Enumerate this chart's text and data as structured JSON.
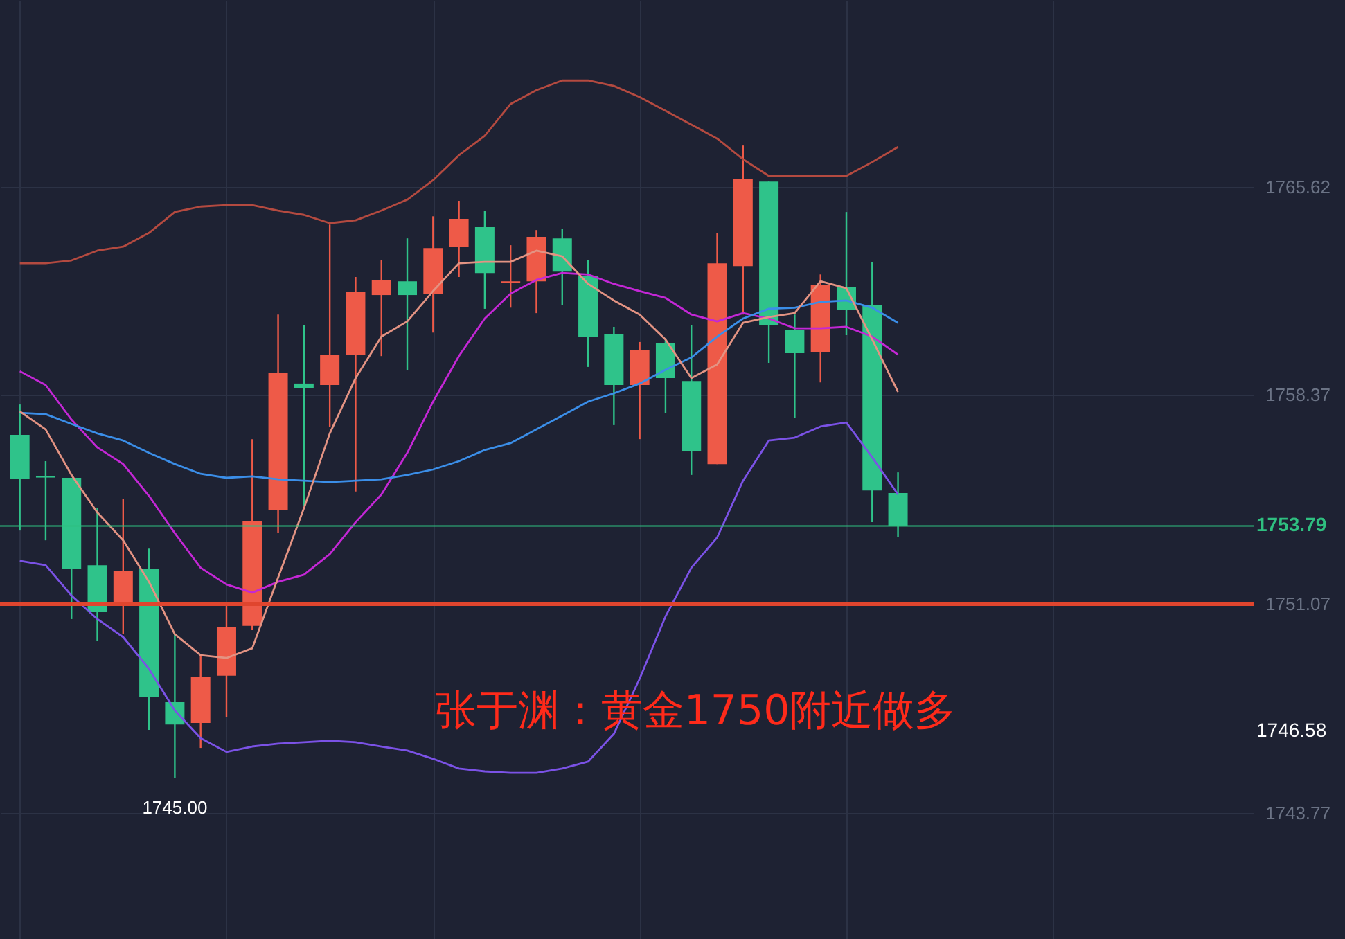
{
  "chart_data": {
    "type": "candlestick",
    "categories": [
      null,
      null,
      null,
      null,
      null,
      null,
      null,
      null,
      null,
      null,
      null,
      null,
      null,
      null,
      null,
      null,
      null,
      null,
      null,
      null,
      null,
      null,
      null,
      null,
      null,
      null,
      null,
      null,
      null,
      null,
      null,
      null,
      null,
      null,
      null,
      null,
      null,
      null,
      null,
      null,
      null,
      null,
      null,
      null,
      null,
      null,
      null,
      null
    ],
    "ohlc": [
      [
        1756.97,
        1758.03,
        1753.63,
        1755.42
      ],
      [
        1755.52,
        1756.05,
        1753.29,
        1755.48
      ],
      [
        1755.47,
        1755.47,
        1750.54,
        1752.28
      ],
      [
        1752.42,
        1754.41,
        1749.77,
        1750.78
      ],
      [
        1751.12,
        1754.74,
        1750.01,
        1752.23
      ],
      [
        1752.28,
        1753.0,
        1746.67,
        1747.83
      ],
      [
        1747.64,
        1750.01,
        1745.0,
        1746.86
      ],
      [
        1746.91,
        1749.28,
        1746.04,
        1748.51
      ],
      [
        1748.56,
        1751.02,
        1747.11,
        1750.25
      ],
      [
        1750.3,
        1756.82,
        1750.15,
        1753.97
      ],
      [
        1754.36,
        1761.17,
        1753.54,
        1759.14
      ],
      [
        1758.76,
        1760.79,
        1754.5,
        1758.61
      ],
      [
        1758.71,
        1764.31,
        1757.26,
        1759.77
      ],
      [
        1759.77,
        1762.48,
        1754.99,
        1761.95
      ],
      [
        1761.85,
        1763.06,
        1759.72,
        1762.38
      ],
      [
        1762.33,
        1763.83,
        1759.24,
        1761.85
      ],
      [
        1761.9,
        1764.6,
        1760.54,
        1763.49
      ],
      [
        1763.54,
        1765.14,
        1762.48,
        1764.51
      ],
      [
        1764.22,
        1764.8,
        1761.37,
        1762.62
      ],
      [
        1762.28,
        1763.59,
        1761.41,
        1762.33
      ],
      [
        1762.33,
        1764.12,
        1761.22,
        1763.88
      ],
      [
        1763.83,
        1764.17,
        1761.51,
        1762.67
      ],
      [
        1762.53,
        1763.06,
        1759.34,
        1760.4
      ],
      [
        1760.5,
        1760.74,
        1757.31,
        1758.71
      ],
      [
        1758.71,
        1760.21,
        1756.82,
        1759.92
      ],
      [
        1760.16,
        1760.35,
        1757.74,
        1758.95
      ],
      [
        1758.85,
        1760.79,
        1755.57,
        1756.39
      ],
      [
        1755.95,
        1764.02,
        1755.95,
        1762.96
      ],
      [
        1762.86,
        1767.07,
        1761.17,
        1765.91
      ],
      [
        1765.81,
        1765.81,
        1759.48,
        1760.79
      ],
      [
        1760.64,
        1761.17,
        1757.55,
        1759.82
      ],
      [
        1759.87,
        1762.57,
        1758.8,
        1762.19
      ],
      [
        1762.14,
        1764.75,
        1760.45,
        1761.32
      ],
      [
        1761.51,
        1763.01,
        1753.92,
        1755.03
      ],
      [
        1754.94,
        1755.66,
        1753.39,
        1753.79
      ],
      null,
      null,
      null,
      null,
      null,
      null,
      null,
      null,
      null,
      null,
      null,
      null,
      null
    ],
    "colors": [
      "#2fc38a",
      "#2fc38a",
      "#2fc38a",
      "#2fc38a",
      "#ee5a48",
      "#2fc38a",
      "#2fc38a",
      "#ee5a48",
      "#ee5a48",
      "#ee5a48",
      "#ee5a48",
      "#2fc38a",
      "#ee5a48",
      "#ee5a48",
      "#ee5a48",
      "#2fc38a",
      "#ee5a48",
      "#ee5a48",
      "#2fc38a",
      "#ee5a48",
      "#ee5a48",
      "#2fc38a",
      "#2fc38a",
      "#2fc38a",
      "#ee5a48",
      "#2fc38a",
      "#2fc38a",
      "#ee5a48",
      "#ee5a48",
      "#2fc38a",
      "#2fc38a",
      "#ee5a48",
      "#2fc38a",
      "#2fc38a",
      "#2fc38a",
      null,
      null,
      null,
      null,
      null,
      null,
      null,
      null,
      null,
      null,
      null,
      null,
      null
    ],
    "series": [
      {
        "type": "line",
        "color": "#b44a40",
        "values": [
          1762.96,
          1762.96,
          1763.06,
          1763.4,
          1763.54,
          1764.02,
          1764.75,
          1764.94,
          1764.99,
          1764.99,
          1764.8,
          1764.65,
          1764.36,
          1764.46,
          1764.8,
          1765.18,
          1765.86,
          1766.73,
          1767.41,
          1768.52,
          1769.0,
          1769.34,
          1769.34,
          1769.15,
          1768.76,
          1768.28,
          1767.8,
          1767.31,
          1766.59,
          1766.01,
          1766.01,
          1766.01,
          1766.01,
          1766.49,
          1767.02,
          null,
          null,
          null,
          null,
          null,
          null,
          null,
          null,
          null,
          null,
          null,
          null,
          null
        ]
      },
      {
        "type": "line",
        "color": "#7b52e6",
        "values": [
          1752.57,
          1752.42,
          1751.36,
          1750.54,
          1749.91,
          1748.8,
          1747.35,
          1746.38,
          1745.9,
          1746.09,
          1746.19,
          1746.24,
          1746.29,
          1746.24,
          1746.09,
          1745.95,
          1745.66,
          1745.32,
          1745.22,
          1745.17,
          1745.17,
          1745.32,
          1745.56,
          1746.53,
          1748.46,
          1750.63,
          1752.33,
          1753.39,
          1755.37,
          1756.77,
          1756.87,
          1757.26,
          1757.4,
          1756.19,
          1754.89,
          null,
          null,
          null,
          null,
          null,
          null,
          null,
          null,
          null,
          null,
          null,
          null,
          null
        ]
      },
      {
        "type": "line",
        "color": "#c427d6",
        "values": [
          1759.19,
          1758.71,
          1757.5,
          1756.53,
          1755.95,
          1754.84,
          1753.54,
          1752.33,
          1751.75,
          1751.46,
          1751.84,
          1752.09,
          1752.81,
          1753.92,
          1754.89,
          1756.34,
          1758.13,
          1759.72,
          1761.03,
          1761.9,
          1762.38,
          1762.62,
          1762.57,
          1762.24,
          1761.99,
          1761.75,
          1761.17,
          1760.93,
          1761.22,
          1761.03,
          1760.69,
          1760.69,
          1760.74,
          1760.4,
          1759.77,
          null,
          null,
          null,
          null,
          null,
          null,
          null,
          null,
          null,
          null,
          null,
          null,
          null
        ]
      },
      {
        "type": "line",
        "color": "#3b8ee8",
        "values": [
          1757.74,
          1757.69,
          1757.35,
          1757.02,
          1756.77,
          1756.34,
          1755.95,
          1755.61,
          1755.47,
          1755.52,
          1755.42,
          1755.37,
          1755.32,
          1755.37,
          1755.42,
          1755.57,
          1755.76,
          1756.05,
          1756.44,
          1756.68,
          1757.16,
          1757.64,
          1758.13,
          1758.42,
          1758.76,
          1759.24,
          1759.67,
          1760.4,
          1761.03,
          1761.37,
          1761.41,
          1761.61,
          1761.66,
          1761.41,
          1760.88,
          null,
          null,
          null,
          null,
          null,
          null,
          null,
          null,
          null,
          null,
          null,
          null,
          null
        ]
      },
      {
        "type": "line",
        "color": "#e39383",
        "values": [
          1757.79,
          1757.16,
          1755.57,
          1754.26,
          1753.29,
          1751.84,
          1750.01,
          1749.28,
          1749.18,
          1749.52,
          1751.99,
          1754.41,
          1757.02,
          1758.95,
          1760.4,
          1760.93,
          1761.99,
          1762.96,
          1763.01,
          1763.01,
          1763.4,
          1763.2,
          1762.24,
          1761.66,
          1761.17,
          1760.3,
          1758.95,
          1759.43,
          1760.88,
          1761.08,
          1761.22,
          1762.33,
          1762.09,
          1760.3,
          1758.47,
          null,
          null,
          null,
          null,
          null,
          null,
          null,
          null,
          null,
          null,
          null,
          null,
          null
        ]
      }
    ],
    "ylim": [
      1739.37,
      1772.15
    ],
    "yticks": [
      1743.77,
      {
        "value": 1751.07,
        "label": "1751.07"
      },
      1758.37,
      1765.62
    ],
    "ref_lines": [
      {
        "axis": "y",
        "value": 1753.79,
        "label": "1753.79",
        "color": "#2fbf80"
      },
      {
        "axis": "y",
        "value": 1751.07,
        "color": "#e0452e"
      }
    ],
    "annotations": [
      "张于渊：黄金1750附近做多",
      {
        "text": "1745.00",
        "y": 1745.0
      },
      "1746.58"
    ],
    "grid": true,
    "tick_labels": "y",
    "marker": "none",
    "line_style": "solid"
  }
}
